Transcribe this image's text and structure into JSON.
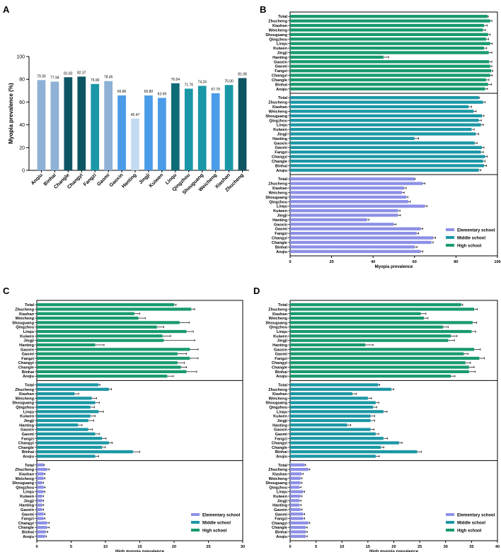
{
  "colors": {
    "elementary": "#8d90e6",
    "middle": "#1b97a5",
    "high": "#189a6f"
  },
  "legend_labels": [
    "Elementary school",
    "Middle school",
    "High school"
  ],
  "chart_data": [
    {
      "panel": "A",
      "type": "bar",
      "orientation": "vertical",
      "ylabel": "Myopia prevalence (%)",
      "xlabel": "",
      "ylim": [
        0,
        100
      ],
      "yticks": [
        0,
        20,
        40,
        60,
        80,
        100
      ],
      "categories": [
        "Anqiu",
        "Binhai",
        "Changle",
        "Changyi",
        "Fangzi",
        "Gaomi",
        "Gaoxin",
        "Hanting",
        "Jingji",
        "Kuiwen",
        "Linqu",
        "Qingzhou",
        "Shouguang",
        "Weicheng",
        "Xiashan",
        "Zhucheng"
      ],
      "values": [
        79.3,
        77.94,
        81.82,
        82.37,
        75.9,
        78.45,
        65.86,
        45.47,
        65.8,
        63.69,
        76.54,
        71.76,
        74.24,
        67.79,
        75.0,
        81.08
      ],
      "value_labels": [
        "79.30",
        "77.94",
        "81.82",
        "82.37",
        "75.90",
        "78.45",
        "65.86",
        "45.47",
        "65.80",
        "63.69",
        "76.54",
        "71.76",
        "74.24",
        "67.79",
        "75.00",
        "81.08"
      ],
      "bar_colors": [
        "#8eb1d5",
        "#8eb1d5",
        "#0e5563",
        "#0e5563",
        "#1a97a6",
        "#8eb1d5",
        "#4b9ce8",
        "#c2dbf1",
        "#4b9ce8",
        "#4b9ce8",
        "#0e6c76",
        "#1a97a6",
        "#1a97a6",
        "#4b9ce8",
        "#1a97a6",
        "#0e5563"
      ]
    },
    {
      "panel": "B",
      "type": "bar",
      "orientation": "horizontal",
      "xlabel": "Myopia prevalence",
      "xlim": [
        0,
        100
      ],
      "xticks": [
        0,
        20,
        40,
        60,
        80,
        100
      ],
      "categories": [
        "Total",
        "Zhucheng",
        "Xiashan",
        "Weicheng",
        "Shouguang",
        "Qingzhou",
        "Linqu",
        "Kuiwen",
        "Jingji",
        "Hanting",
        "Gaoxin",
        "Gaomi",
        "Fangzi",
        "Changyi",
        "Changle",
        "Binhai",
        "Anqiu"
      ],
      "series": [
        {
          "name": "High school",
          "values": [
            95.2,
            96.5,
            93.5,
            93.0,
            95.5,
            94.5,
            96.5,
            93.5,
            95.8,
            45.0,
            96.0,
            96.5,
            97.0,
            96.5,
            94.5,
            95.5,
            94.0
          ],
          "errors": [
            0.4,
            0.8,
            1.5,
            1.2,
            1.0,
            1.2,
            1.0,
            1.3,
            1.5,
            2.5,
            1.3,
            0.8,
            0.8,
            1.0,
            1.4,
            1.6,
            1.2
          ]
        },
        {
          "name": "Middle school",
          "values": [
            91.0,
            93.0,
            86.0,
            88.5,
            92.5,
            91.0,
            92.0,
            87.5,
            89.5,
            60.0,
            89.0,
            92.5,
            92.0,
            94.0,
            93.0,
            93.5,
            91.0
          ],
          "errors": [
            0.4,
            1.0,
            1.5,
            1.2,
            1.0,
            1.2,
            1.2,
            1.3,
            1.4,
            2.0,
            1.2,
            1.0,
            1.2,
            1.0,
            1.0,
            1.2,
            1.0
          ]
        },
        {
          "name": "Elementary school",
          "values": [
            60.0,
            64.0,
            55.0,
            54.0,
            56.0,
            57.0,
            65.0,
            52.0,
            52.0,
            37.0,
            50.0,
            63.0,
            61.0,
            69.0,
            68.0,
            60.0,
            63.0
          ],
          "errors": [
            0.3,
            1.0,
            1.0,
            1.0,
            0.8,
            1.0,
            1.0,
            1.0,
            1.2,
            1.0,
            1.0,
            1.0,
            1.0,
            1.2,
            1.0,
            1.2,
            1.0
          ]
        }
      ]
    },
    {
      "panel": "C",
      "type": "bar",
      "orientation": "horizontal",
      "xlabel": "High myopia prevalence",
      "xlim": [
        0,
        30
      ],
      "xticks": [
        0,
        5,
        10,
        15,
        20,
        25,
        30
      ],
      "categories": [
        "Total",
        "Zhucheng",
        "Xiashan",
        "Weicheng",
        "Shouguang",
        "Qingzhou",
        "Linqu",
        "Kuiwen",
        "Jingji",
        "Hanting",
        "Gaoxin",
        "Gaomi",
        "Fangzi",
        "Changyi",
        "Changle",
        "Binhai",
        "Anqiu"
      ],
      "series": [
        {
          "name": "High school",
          "values": [
            20.0,
            22.5,
            14.2,
            14.8,
            20.8,
            17.5,
            21.8,
            18.3,
            18.5,
            8.5,
            22.3,
            20.5,
            22.3,
            20.5,
            21.0,
            21.8,
            19.0
          ],
          "errors": [
            0.3,
            0.5,
            0.8,
            1.0,
            1.4,
            1.0,
            1.0,
            1.2,
            4.5,
            1.3,
            1.2,
            1.3,
            1.2,
            1.0,
            0.8,
            1.5,
            0.9
          ]
        },
        {
          "name": "Middle school",
          "values": [
            9.0,
            10.5,
            5.5,
            8.0,
            8.5,
            7.8,
            9.0,
            7.8,
            7.5,
            6.0,
            7.5,
            8.5,
            9.5,
            10.5,
            9.5,
            14.0,
            8.5
          ],
          "errors": [
            0.2,
            0.4,
            0.6,
            0.7,
            0.6,
            0.6,
            0.7,
            0.7,
            0.8,
            0.6,
            0.6,
            0.6,
            0.6,
            0.5,
            0.5,
            1.0,
            0.5
          ]
        },
        {
          "name": "Elementary school",
          "values": [
            1.0,
            1.5,
            1.0,
            1.0,
            0.8,
            1.0,
            1.0,
            0.8,
            0.8,
            0.8,
            0.8,
            1.0,
            1.0,
            1.5,
            1.5,
            1.3,
            1.2
          ],
          "errors": [
            0.1,
            0.3,
            0.2,
            0.2,
            0.2,
            0.2,
            0.2,
            0.2,
            0.2,
            0.2,
            0.2,
            0.2,
            0.2,
            0.3,
            0.3,
            0.3,
            0.2
          ]
        }
      ]
    },
    {
      "panel": "D",
      "type": "bar",
      "orientation": "horizontal",
      "xlabel": "High myopia prevalence",
      "xlim": [
        0,
        40
      ],
      "xticks": [
        0,
        5,
        10,
        15,
        20,
        25,
        30,
        35,
        40
      ],
      "categories": [
        "Total",
        "Zhucheng",
        "Xiashan",
        "Weicheng",
        "Shouguang",
        "Qingzhou",
        "Linqu",
        "Kuiwen",
        "Jingji",
        "Hanting",
        "Gaoxin",
        "Gaomi",
        "Fangzi",
        "Changyi",
        "Changle",
        "Binhai",
        "Anqiu"
      ],
      "series": [
        {
          "name": "High school",
          "values": [
            33.0,
            35.5,
            25.2,
            25.8,
            35.2,
            29.5,
            35.0,
            31.0,
            30.5,
            14.5,
            35.5,
            33.5,
            36.5,
            33.8,
            34.5,
            34.5,
            31.0
          ],
          "errors": [
            0.3,
            0.6,
            1.0,
            0.8,
            0.8,
            1.0,
            0.8,
            1.2,
            1.2,
            1.5,
            1.2,
            0.8,
            1.0,
            1.0,
            1.0,
            1.2,
            0.8
          ]
        },
        {
          "name": "Middle school",
          "values": [
            17.0,
            19.5,
            12.0,
            15.0,
            16.5,
            16.0,
            18.0,
            15.5,
            15.5,
            11.0,
            15.5,
            16.5,
            18.0,
            21.0,
            17.5,
            24.5,
            16.5
          ],
          "errors": [
            0.3,
            0.5,
            0.8,
            0.7,
            0.6,
            0.7,
            0.7,
            0.8,
            0.8,
            0.7,
            0.7,
            0.6,
            0.8,
            0.6,
            0.6,
            0.8,
            0.7
          ]
        },
        {
          "name": "Elementary school",
          "values": [
            2.8,
            3.5,
            2.2,
            2.0,
            2.0,
            1.8,
            2.5,
            2.0,
            1.8,
            1.8,
            2.0,
            2.5,
            2.5,
            3.5,
            3.0,
            3.0,
            3.0
          ],
          "errors": [
            0.2,
            0.3,
            0.3,
            0.3,
            0.3,
            0.3,
            0.3,
            0.3,
            0.3,
            0.3,
            0.3,
            0.3,
            0.3,
            0.3,
            0.3,
            0.3,
            0.3
          ]
        }
      ]
    }
  ]
}
